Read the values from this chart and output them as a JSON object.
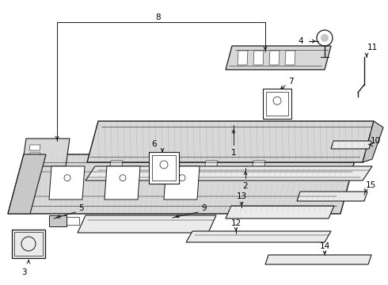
{
  "bg_color": "#ffffff",
  "line_color": "#1a1a1a",
  "label_color": "#000000",
  "fig_width": 4.9,
  "fig_height": 3.6,
  "dpi": 100,
  "gray_fill": "#d8d8d8",
  "light_gray": "#ebebeb",
  "mid_gray": "#c8c8c8"
}
